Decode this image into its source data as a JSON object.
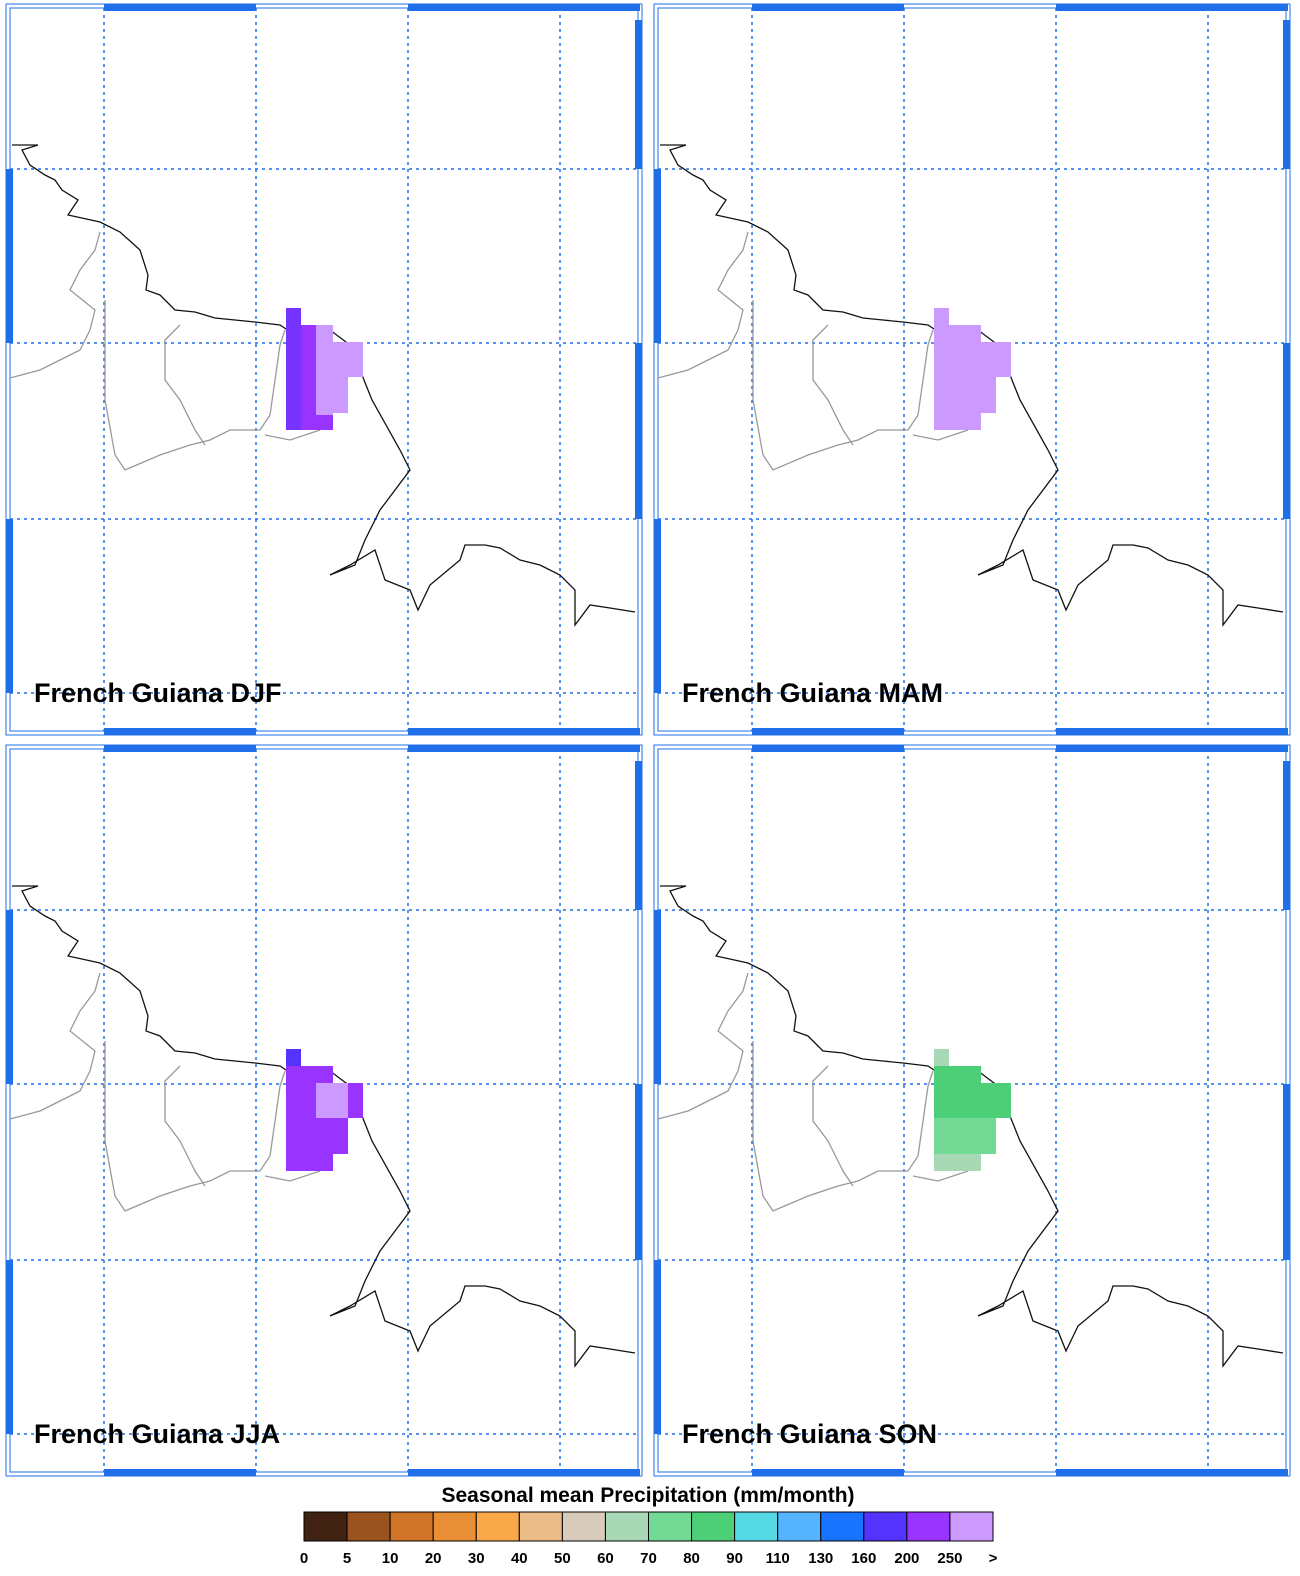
{
  "panels": [
    {
      "title": "French Guiana DJF"
    },
    {
      "title": "French Guiana MAM"
    },
    {
      "title": "French Guiana JJA"
    },
    {
      "title": "French Guiana SON"
    }
  ],
  "colorbar": {
    "title": "Seasonal mean Precipitation (mm/month)",
    "labels": [
      "0",
      "5",
      "10",
      "20",
      "30",
      "40",
      "50",
      "60",
      "70",
      "80",
      "90",
      "110",
      "130",
      "160",
      "200",
      "250",
      ">"
    ],
    "colors": [
      "#3f2212",
      "#9a521f",
      "#d07428",
      "#e88f35",
      "#f9a94a",
      "#e9bc88",
      "#d9cbbb",
      "#a8d8b5",
      "#73da96",
      "#4dcf78",
      "#55d9e5",
      "#55b4ff",
      "#1873ff",
      "#5533ff",
      "#9933ff",
      "#cc99ff"
    ]
  }
}
